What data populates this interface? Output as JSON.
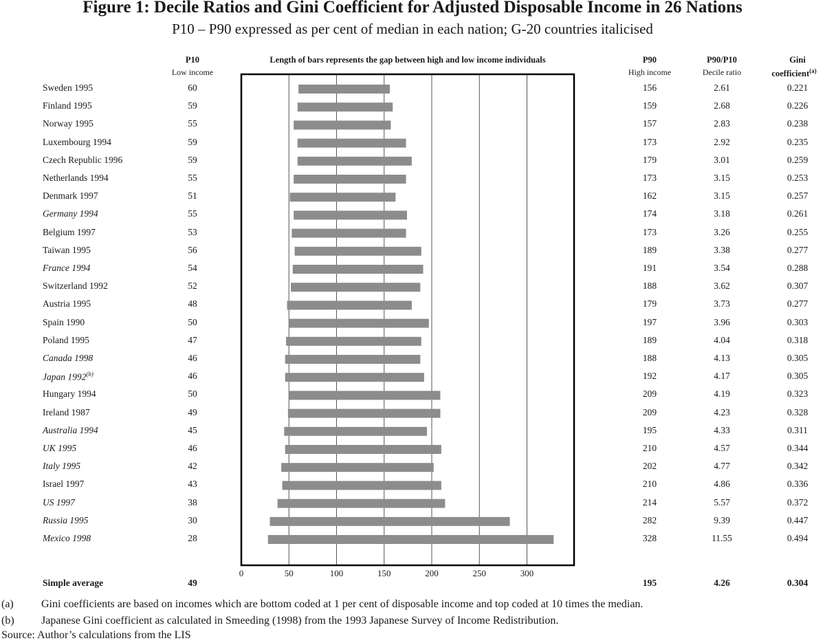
{
  "title": "Figure 1: Decile Ratios and Gini Coefficient for Adjusted Disposable Income in 26 Nations",
  "subtitle": "P10 – P90 expressed as per cent of median in each nation; G-20 countries italicised",
  "headers": {
    "p10": "P10",
    "p10_sub": "Low income",
    "bars": "Length of bars represents the gap between high and low income individuals",
    "p90": "P90",
    "p90_sub": "High income",
    "ratio": "P90/P10",
    "ratio_sub": "Decile ratio",
    "gini": "Gini",
    "gini_sub": "coefficient",
    "gini_sup": "(a)"
  },
  "chart_data": {
    "type": "bar",
    "subtype": "floating-range",
    "title": "Length of bars represents the gap between high and low income individuals",
    "xlim": [
      0,
      350
    ],
    "xticks": [
      0,
      50,
      100,
      150,
      200,
      250,
      300
    ],
    "gridlines": true,
    "series": [
      {
        "name": "P10",
        "values": [
          60,
          59,
          55,
          59,
          59,
          55,
          51,
          55,
          53,
          56,
          54,
          52,
          48,
          50,
          47,
          46,
          46,
          50,
          49,
          45,
          46,
          42,
          43,
          38,
          30,
          28
        ]
      },
      {
        "name": "P90",
        "values": [
          156,
          159,
          157,
          173,
          179,
          173,
          162,
          174,
          173,
          189,
          191,
          188,
          179,
          197,
          189,
          188,
          192,
          209,
          209,
          195,
          210,
          202,
          210,
          214,
          282,
          328
        ]
      }
    ],
    "rows": [
      {
        "label": "Sweden 1995",
        "italic": false,
        "sup": "",
        "p10": "60",
        "p90": "156",
        "ratio": "2.61",
        "gini": "0.221"
      },
      {
        "label": "Finland 1995",
        "italic": false,
        "sup": "",
        "p10": "59",
        "p90": "159",
        "ratio": "2.68",
        "gini": "0.226"
      },
      {
        "label": "Norway 1995",
        "italic": false,
        "sup": "",
        "p10": "55",
        "p90": "157",
        "ratio": "2.83",
        "gini": "0.238"
      },
      {
        "label": "Luxembourg 1994",
        "italic": false,
        "sup": "",
        "p10": "59",
        "p90": "173",
        "ratio": "2.92",
        "gini": "0.235"
      },
      {
        "label": "Czech Republic 1996",
        "italic": false,
        "sup": "",
        "p10": "59",
        "p90": "179",
        "ratio": "3.01",
        "gini": "0.259"
      },
      {
        "label": "Netherlands 1994",
        "italic": false,
        "sup": "",
        "p10": "55",
        "p90": "173",
        "ratio": "3.15",
        "gini": "0.253"
      },
      {
        "label": "Denmark 1997",
        "italic": false,
        "sup": "",
        "p10": "51",
        "p90": "162",
        "ratio": "3.15",
        "gini": "0.257"
      },
      {
        "label": "Germany 1994",
        "italic": true,
        "sup": "",
        "p10": "55",
        "p90": "174",
        "ratio": "3.18",
        "gini": "0.261"
      },
      {
        "label": "Belgium 1997",
        "italic": false,
        "sup": "",
        "p10": "53",
        "p90": "173",
        "ratio": "3.26",
        "gini": "0.255"
      },
      {
        "label": "Taiwan 1995",
        "italic": false,
        "sup": "",
        "p10": "56",
        "p90": "189",
        "ratio": "3.38",
        "gini": "0.277"
      },
      {
        "label": "France 1994",
        "italic": true,
        "sup": "",
        "p10": "54",
        "p90": "191",
        "ratio": "3.54",
        "gini": "0.288"
      },
      {
        "label": "Switzerland 1992",
        "italic": false,
        "sup": "",
        "p10": "52",
        "p90": "188",
        "ratio": "3.62",
        "gini": "0.307"
      },
      {
        "label": "Austria 1995",
        "italic": false,
        "sup": "",
        "p10": "48",
        "p90": "179",
        "ratio": "3.73",
        "gini": "0.277"
      },
      {
        "label": "Spain 1990",
        "italic": false,
        "sup": "",
        "p10": "50",
        "p90": "197",
        "ratio": "3.96",
        "gini": "0.303"
      },
      {
        "label": "Poland 1995",
        "italic": false,
        "sup": "",
        "p10": "47",
        "p90": "189",
        "ratio": "4.04",
        "gini": "0.318"
      },
      {
        "label": "Canada 1998",
        "italic": true,
        "sup": "",
        "p10": "46",
        "p90": "188",
        "ratio": "4.13",
        "gini": "0.305"
      },
      {
        "label": "Japan 1992",
        "italic": true,
        "sup": "(b)",
        "p10": "46",
        "p90": "192",
        "ratio": "4.17",
        "gini": "0.305"
      },
      {
        "label": "Hungary 1994",
        "italic": false,
        "sup": "",
        "p10": "50",
        "p90": "209",
        "ratio": "4.19",
        "gini": "0.323"
      },
      {
        "label": "Ireland 1987",
        "italic": false,
        "sup": "",
        "p10": "49",
        "p90": "209",
        "ratio": "4.23",
        "gini": "0.328"
      },
      {
        "label": "Australia 1994",
        "italic": true,
        "sup": "",
        "p10": "45",
        "p90": "195",
        "ratio": "4.33",
        "gini": "0.311"
      },
      {
        "label": "UK 1995",
        "italic": true,
        "sup": "",
        "p10": "46",
        "p90": "210",
        "ratio": "4.57",
        "gini": "0.344"
      },
      {
        "label": "Italy 1995",
        "italic": true,
        "sup": "",
        "p10": "42",
        "p90": "202",
        "ratio": "4.77",
        "gini": "0.342"
      },
      {
        "label": "Israel 1997",
        "italic": false,
        "sup": "",
        "p10": "43",
        "p90": "210",
        "ratio": "4.86",
        "gini": "0.336"
      },
      {
        "label": "US 1997",
        "italic": true,
        "sup": "",
        "p10": "38",
        "p90": "214",
        "ratio": "5.57",
        "gini": "0.372"
      },
      {
        "label": "Russia 1995",
        "italic": true,
        "sup": "",
        "p10": "30",
        "p90": "282",
        "ratio": "9.39",
        "gini": "0.447"
      },
      {
        "label": "Mexico 1998",
        "italic": true,
        "sup": "",
        "p10": "28",
        "p90": "328",
        "ratio": "11.55",
        "gini": "0.494"
      }
    ],
    "average": {
      "label": "Simple average",
      "p10": "49",
      "p90": "195",
      "ratio": "4.26",
      "gini": "0.304"
    }
  },
  "colors": {
    "bar": "#8c8c8c",
    "grid": "#555555",
    "frame": "#000000"
  },
  "footnotes": [
    {
      "marker": "(a)",
      "text": "Gini coefficients are based on incomes which are bottom coded at 1 per cent of disposable income and top coded at 10 times the median."
    },
    {
      "marker": "(b)",
      "text": "Japanese Gini coefficient as calculated in Smeeding (1998) from the 1993 Japanese Survey of Income Redistribution."
    }
  ],
  "source": "Source: Author’s calculations from the LIS"
}
